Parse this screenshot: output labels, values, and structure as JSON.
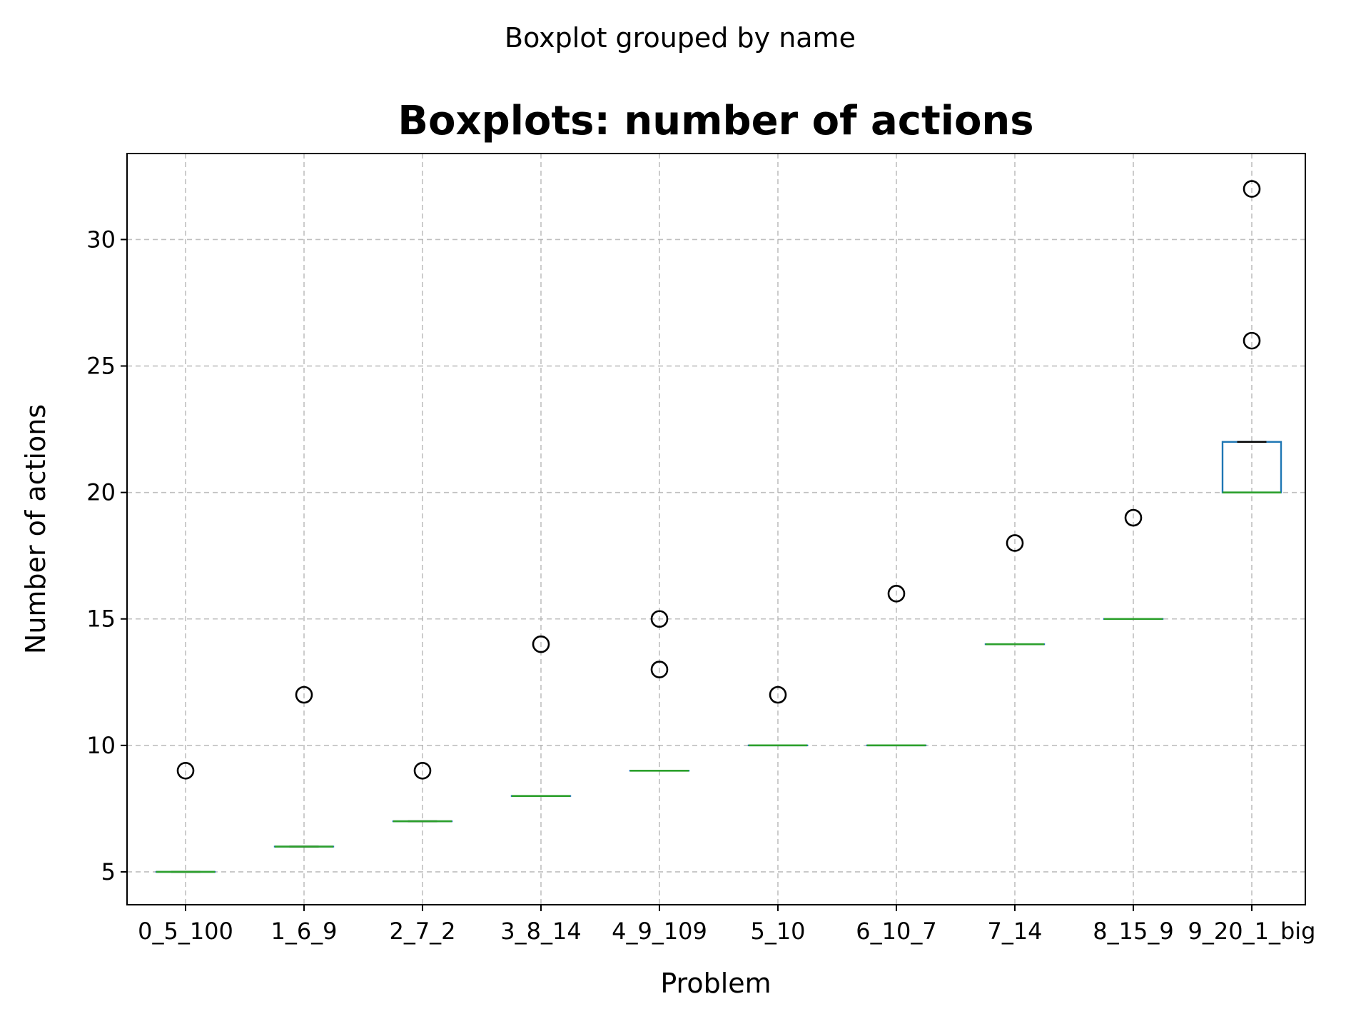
{
  "chart_data": {
    "type": "boxplot",
    "suptitle": "Boxplot grouped by name",
    "title": "Boxplots: number of actions",
    "xlabel": "Problem",
    "ylabel": "Number of actions",
    "ylim": [
      3.7,
      33.4
    ],
    "yticks": [
      5,
      10,
      15,
      20,
      25,
      30
    ],
    "grid": true,
    "colors": {
      "box": "#1f77b4",
      "median": "#2ca02c",
      "whisker": "#000000",
      "flier": "#000000"
    },
    "categories": [
      "0_5_100",
      "1_6_9",
      "2_7_2",
      "3_8_14",
      "4_9_109",
      "5_10",
      "6_10_7",
      "7_14",
      "8_15_9",
      "9_20_1_big"
    ],
    "boxes": [
      {
        "q1": 5,
        "median": 5,
        "q3": 5,
        "whislo": 5,
        "whishi": 5,
        "fliers": [
          9
        ]
      },
      {
        "q1": 6,
        "median": 6,
        "q3": 6,
        "whislo": 6,
        "whishi": 6,
        "fliers": [
          12
        ]
      },
      {
        "q1": 7,
        "median": 7,
        "q3": 7,
        "whislo": 7,
        "whishi": 7,
        "fliers": [
          9
        ]
      },
      {
        "q1": 8,
        "median": 8,
        "q3": 8,
        "whislo": 8,
        "whishi": 8,
        "fliers": [
          14
        ]
      },
      {
        "q1": 9,
        "median": 9,
        "q3": 9,
        "whislo": 9,
        "whishi": 9,
        "fliers": [
          13,
          15
        ]
      },
      {
        "q1": 10,
        "median": 10,
        "q3": 10,
        "whislo": 10,
        "whishi": 10,
        "fliers": [
          12
        ]
      },
      {
        "q1": 10,
        "median": 10,
        "q3": 10,
        "whislo": 10,
        "whishi": 10,
        "fliers": [
          16
        ]
      },
      {
        "q1": 14,
        "median": 14,
        "q3": 14,
        "whislo": 14,
        "whishi": 14,
        "fliers": [
          18
        ]
      },
      {
        "q1": 15,
        "median": 15,
        "q3": 15,
        "whislo": 15,
        "whishi": 15,
        "fliers": [
          19
        ]
      },
      {
        "q1": 20,
        "median": 20,
        "q3": 22,
        "whislo": 20,
        "whishi": 22,
        "fliers": [
          26,
          32
        ]
      }
    ]
  }
}
